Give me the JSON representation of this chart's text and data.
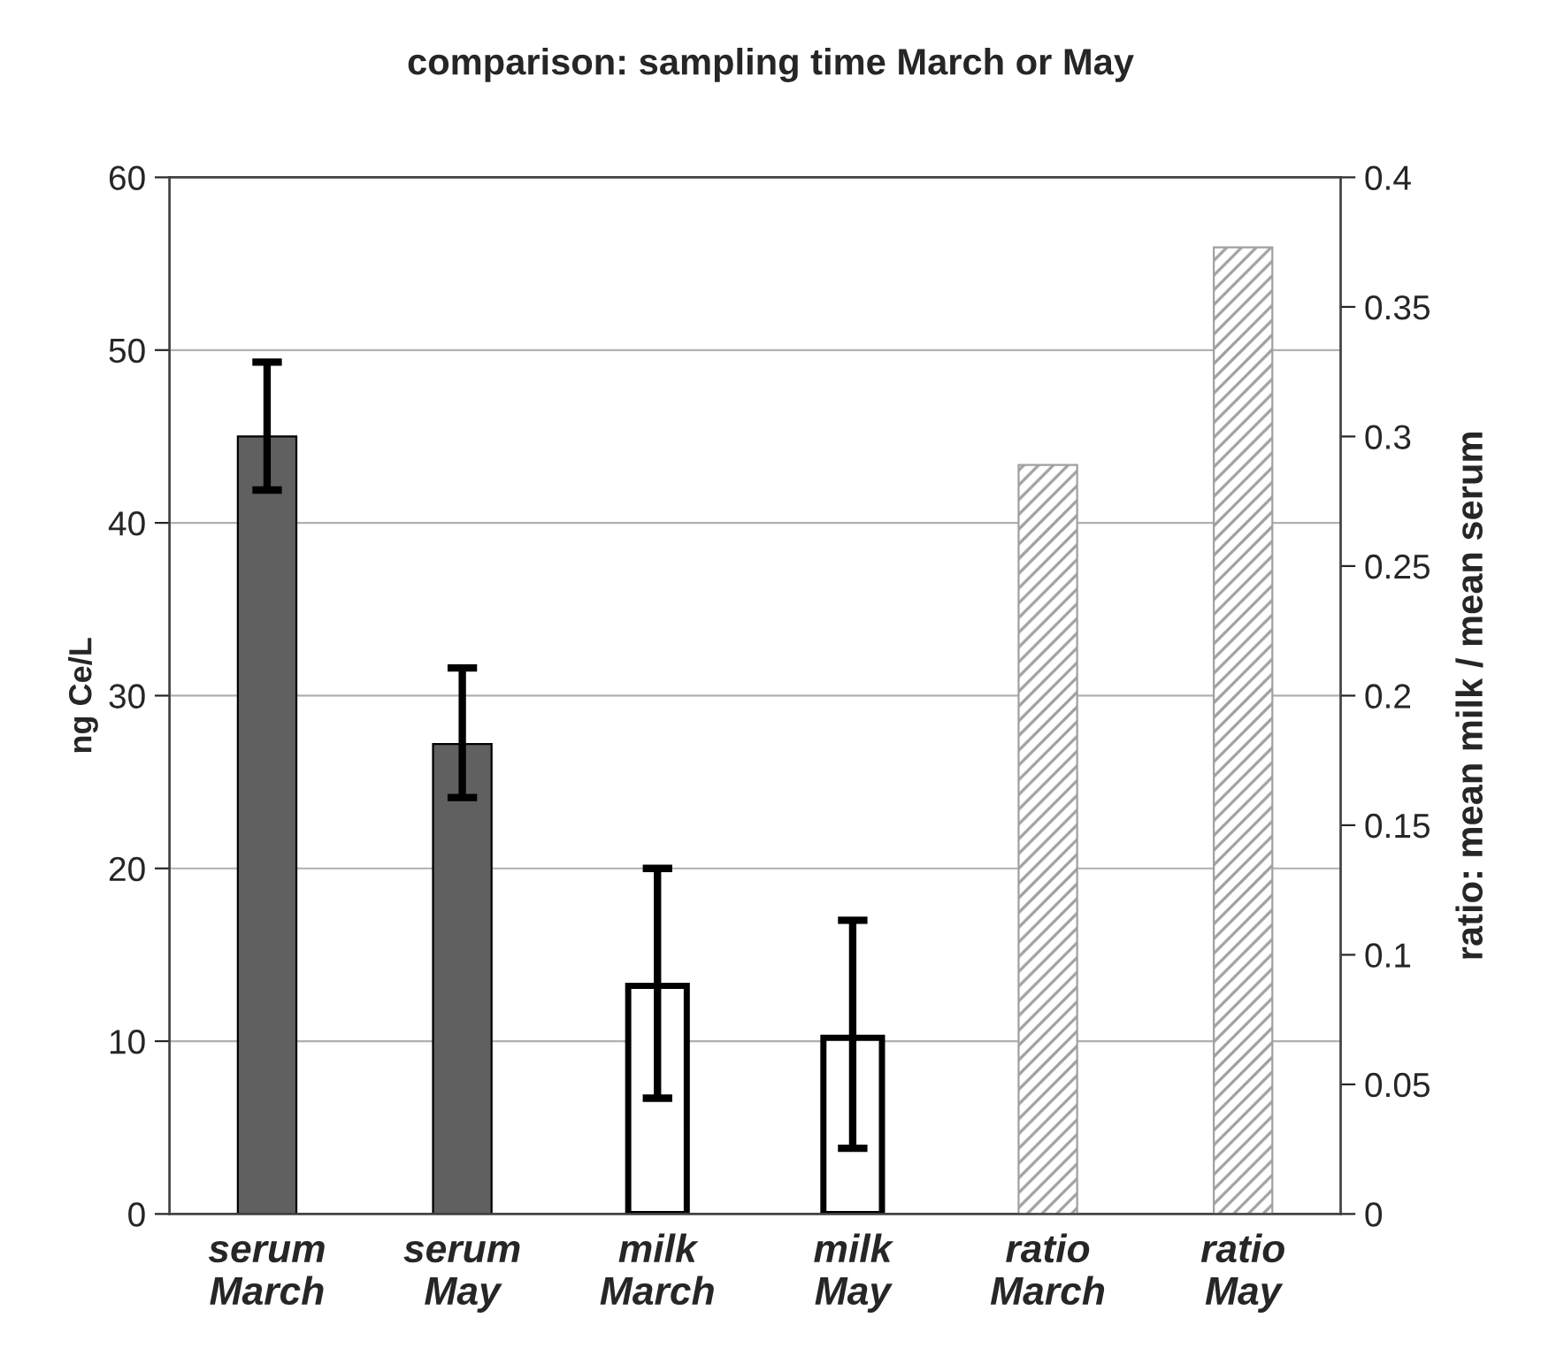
{
  "chart_data": {
    "type": "bar",
    "title": "comparison: sampling time March or May",
    "ylabel": "ng Ce/L",
    "y2label": "ratio: mean milk / mean serum",
    "categories": [
      "serum\nMarch",
      "serum\nMay",
      "milk\nMarch",
      "milk\nMay",
      "ratio\nMarch",
      "ratio\nMay"
    ],
    "series": [
      {
        "color": "#606060",
        "values": [
          45.0,
          27.2,
          null,
          null,
          null,
          null
        ],
        "errors": [
          [
            41.9,
            49.3
          ],
          [
            24.1,
            31.6
          ],
          null,
          null,
          null,
          null
        ]
      },
      {
        "color": "#ffffff",
        "values": [
          null,
          null,
          13.2,
          10.2,
          null,
          null
        ],
        "errors": [
          null,
          null,
          [
            6.7,
            20.0
          ],
          [
            3.8,
            17.0
          ],
          null,
          null
        ]
      },
      {
        "color": "#a0a0a0",
        "axis": "y2",
        "values": [
          null,
          null,
          null,
          null,
          0.289,
          0.373
        ]
      }
    ],
    "ylim": [
      0,
      60
    ],
    "yticks": [
      0,
      10,
      20,
      30,
      40,
      50,
      60
    ],
    "y2lim": [
      0,
      0.4
    ],
    "y2ticks": [
      0,
      0.05,
      0.1,
      0.15,
      0.2,
      0.25,
      0.3,
      0.35,
      0.4
    ],
    "grid": "y",
    "legend": false
  }
}
